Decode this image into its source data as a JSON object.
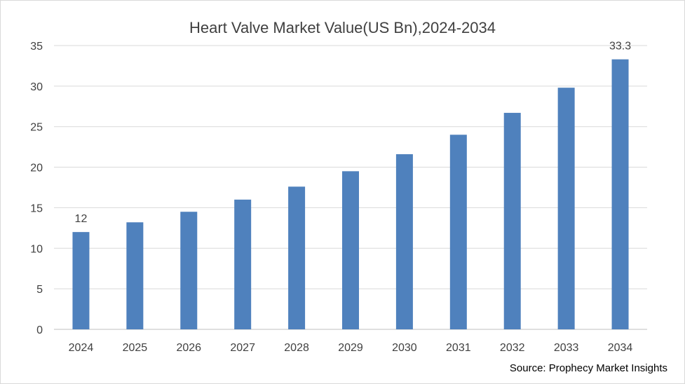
{
  "chart_data": {
    "type": "bar",
    "title": "Heart Valve Market Value(US Bn),2024-2034",
    "source": "Source: Prophecy Market Insights",
    "categories": [
      "2024",
      "2025",
      "2026",
      "2027",
      "2028",
      "2029",
      "2030",
      "2031",
      "2032",
      "2033",
      "2034"
    ],
    "values": [
      12,
      13.2,
      14.5,
      16,
      17.6,
      19.5,
      21.6,
      24,
      26.7,
      29.8,
      33.3
    ],
    "data_labels": {
      "0": "12",
      "10": "33.3"
    },
    "ylim": [
      0,
      35
    ],
    "yticks": [
      "0",
      "5",
      "10",
      "15",
      "20",
      "25",
      "30",
      "35"
    ],
    "xlabel": "",
    "ylabel": "",
    "grid": true,
    "legend": "none",
    "colors": {
      "bar": "#4f81bd",
      "grid": "#d9d9d9",
      "axis": "#bfbfbf",
      "text": "#404040"
    }
  }
}
